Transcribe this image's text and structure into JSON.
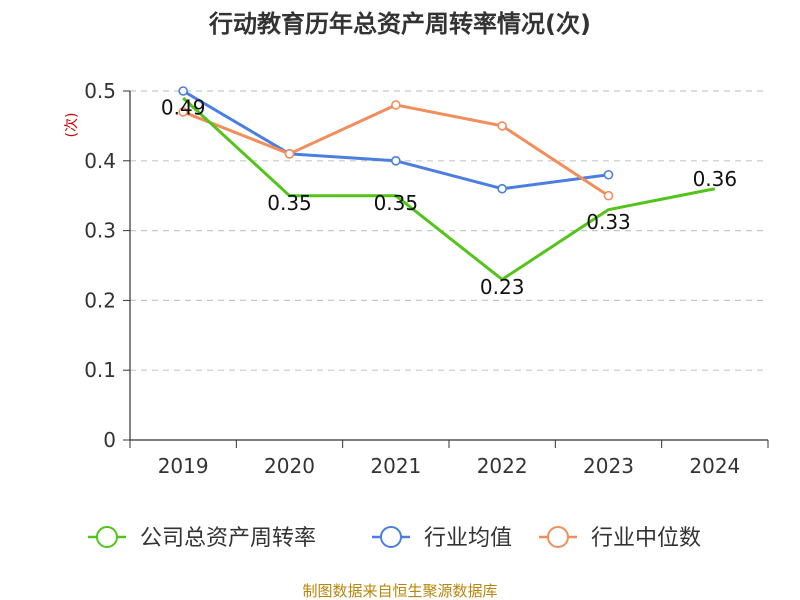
{
  "chart_data": {
    "type": "line",
    "title": "行动教育历年总资产周转率情况(次)",
    "ylabel": "(次)",
    "xlabel": "",
    "categories": [
      "2019",
      "2020",
      "2021",
      "2022",
      "2023",
      "2024"
    ],
    "ylim": [
      0,
      0.5
    ],
    "yticks": [
      "0",
      "0.1",
      "0.2",
      "0.3",
      "0.4",
      "0.5"
    ],
    "grid": true,
    "legend_position": "bottom",
    "series": [
      {
        "name": "公司总资产周转率",
        "color": "#52c41a",
        "values": [
          0.49,
          0.35,
          0.35,
          0.23,
          0.33,
          0.36
        ],
        "labels": [
          "0.49",
          "0.35",
          "0.35",
          "0.23",
          "0.33",
          "0.36"
        ]
      },
      {
        "name": "行业均值",
        "color": "#4a7fe0",
        "values": [
          0.5,
          0.41,
          0.4,
          0.36,
          0.38,
          null
        ]
      },
      {
        "name": "行业中位数",
        "color": "#f28e5b",
        "values": [
          0.47,
          0.41,
          0.48,
          0.45,
          0.35,
          null
        ]
      }
    ],
    "source": "制图数据来自恒生聚源数据库"
  }
}
